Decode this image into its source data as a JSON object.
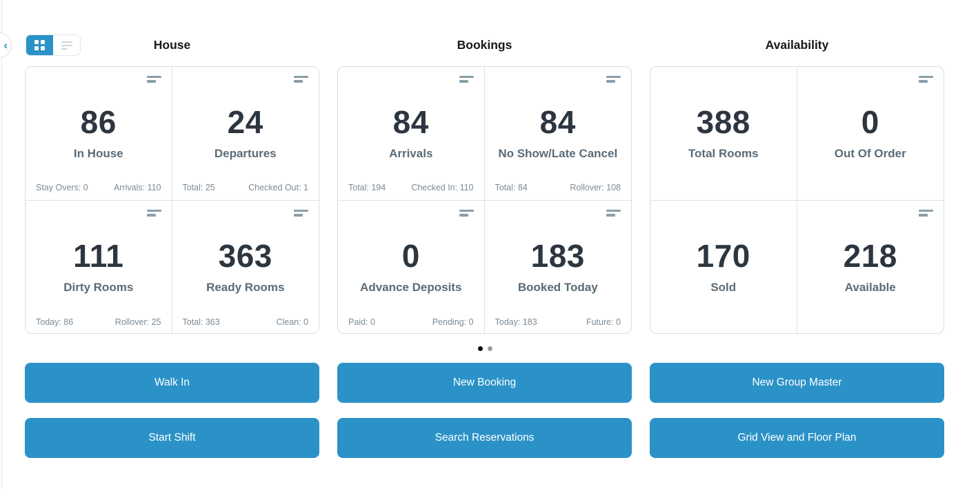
{
  "collapse_button": {
    "icon": "chevron-left-icon",
    "glyph": "‹"
  },
  "view_toggle": {
    "active": "grid",
    "options": [
      {
        "id": "grid",
        "icon": "grid-view-icon"
      },
      {
        "id": "list",
        "icon": "list-view-icon"
      }
    ]
  },
  "columns": [
    {
      "title": "House",
      "cards": [
        {
          "value": "86",
          "label": "In House",
          "stats_left": "Stay Overs: 0",
          "stats_right": "Arrivals: 110",
          "menu_icon": true
        },
        {
          "value": "24",
          "label": "Departures",
          "stats_left": "Total: 25",
          "stats_right": "Checked Out: 1",
          "menu_icon": true
        },
        {
          "value": "111",
          "label": "Dirty Rooms",
          "stats_left": "Today: 86",
          "stats_right": "Rollover: 25",
          "menu_icon": true
        },
        {
          "value": "363",
          "label": "Ready Rooms",
          "stats_left": "Total: 363",
          "stats_right": "Clean: 0",
          "menu_icon": true
        }
      ],
      "buttons": [
        "Walk In",
        "Start Shift"
      ]
    },
    {
      "title": "Bookings",
      "cards": [
        {
          "value": "84",
          "label": "Arrivals",
          "stats_left": "Total: 194",
          "stats_right": "Checked In: 110",
          "menu_icon": true
        },
        {
          "value": "84",
          "label": "No Show/Late Cancel",
          "stats_left": "Total: 84",
          "stats_right": "Rollover: 108",
          "menu_icon": true
        },
        {
          "value": "0",
          "label": "Advance Deposits",
          "stats_left": "Paid: 0",
          "stats_right": "Pending: 0",
          "menu_icon": true
        },
        {
          "value": "183",
          "label": "Booked Today",
          "stats_left": "Today: 183",
          "stats_right": "Future: 0",
          "menu_icon": true
        }
      ],
      "buttons": [
        "New Booking",
        "Search Reservations"
      ]
    },
    {
      "title": "Availability",
      "cards": [
        {
          "value": "388",
          "label": "Total Rooms",
          "menu_icon": false
        },
        {
          "value": "0",
          "label": "Out Of Order",
          "menu_icon": true
        },
        {
          "value": "170",
          "label": "Sold",
          "menu_icon": false
        },
        {
          "value": "218",
          "label": "Available",
          "menu_icon": true
        }
      ],
      "buttons": [
        "New Group Master",
        "Grid View and Floor Plan"
      ]
    }
  ],
  "carousel": {
    "dot_count": 2,
    "active_index": 0
  },
  "colors": {
    "accent_blue": "#2b92c8",
    "value_text": "#2d3640",
    "label_text": "#5a6b77",
    "stats_text": "#7b8a94",
    "card_border": "#d7dce0",
    "menu_icon": "#8a9ea9",
    "active_dot": "#0d0d0e",
    "inactive_dot": "#9b9ba0"
  }
}
